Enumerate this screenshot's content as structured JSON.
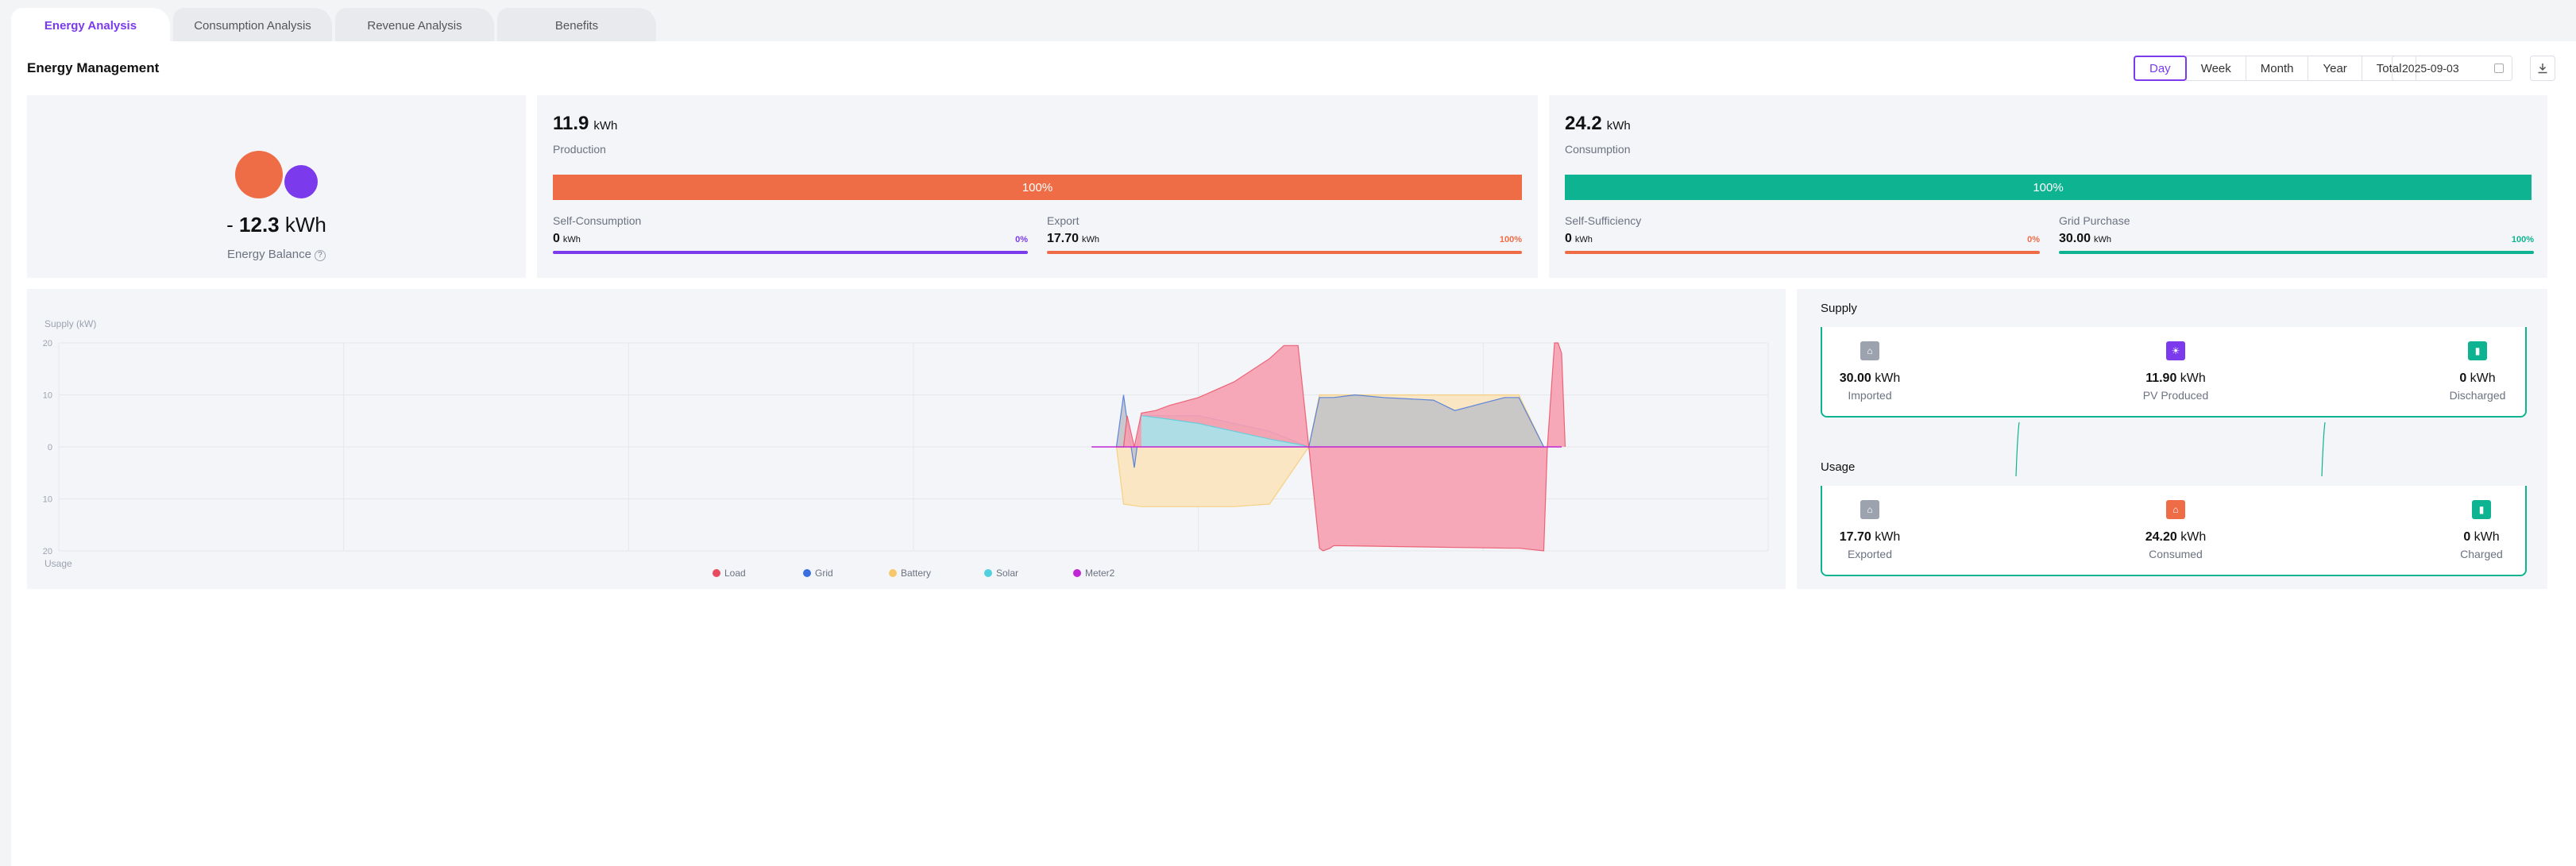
{
  "tabs": [
    {
      "label": "Energy Analysis",
      "active": true
    },
    {
      "label": "Consumption Analysis"
    },
    {
      "label": "Revenue Analysis"
    },
    {
      "label": "Benefits"
    }
  ],
  "header": {
    "title": "Energy Management",
    "periods": [
      "Day",
      "Week",
      "Month",
      "Year",
      "Total"
    ],
    "active_period": "Day",
    "date": "2025-09-03",
    "download_icon": "download-icon"
  },
  "balance": {
    "prefix": "-",
    "value": "12.3",
    "unit": "kWh",
    "label": "Energy Balance",
    "help_icon": "help-circle-icon"
  },
  "production": {
    "value": "11.9",
    "unit": "kWh",
    "label": "Production",
    "bar_percent": "100%",
    "bar_fill": 1.0,
    "color": "#ef6d46",
    "left": {
      "label": "Self-Consumption",
      "value": "0",
      "unit": "kWh",
      "percent": "0%",
      "color": "#7c3aed"
    },
    "right": {
      "label": "Export",
      "value": "17.70",
      "unit": "kWh",
      "percent": "100%",
      "color": "#ef6d46"
    }
  },
  "consumption": {
    "value": "24.2",
    "unit": "kWh",
    "label": "Consumption",
    "bar_percent": "100%",
    "bar_fill": 1.0,
    "color": "#0eb391",
    "left": {
      "label": "Self-Sufficiency",
      "value": "0",
      "unit": "kWh",
      "percent": "0%",
      "color": "#ef6d46"
    },
    "right": {
      "label": "Grid Purchase",
      "value": "30.00",
      "unit": "kWh",
      "percent": "100%",
      "color": "#0eb391"
    }
  },
  "chart_data": {
    "type": "area",
    "ylabel_top": "Supply (kW)",
    "ylabel_bottom": "Usage",
    "ylim": [
      -20,
      20
    ],
    "y_ticks": [
      "20",
      "10",
      "0",
      "10",
      "20"
    ],
    "x_range_hours": [
      0,
      24
    ],
    "grid": true,
    "legend_position": "bottom-center",
    "legend": [
      {
        "name": "Load",
        "color": "#e84a5f"
      },
      {
        "name": "Grid",
        "color": "#3b6fe0"
      },
      {
        "name": "Battery",
        "color": "#f5c96b"
      },
      {
        "name": "Solar",
        "color": "#4fd1e0"
      },
      {
        "name": "Meter2",
        "color": "#c026d3"
      }
    ],
    "series": [
      {
        "name": "Load",
        "x": [
          14.85,
          14.95,
          15.0,
          15.1,
          15.2,
          15.4,
          15.6,
          16,
          16.5,
          17,
          17.2,
          17.4,
          17.55,
          17.7,
          17.75,
          17.85,
          17.9,
          20.4,
          20.5,
          20.85,
          20.9,
          21.0,
          21.05,
          21.1,
          21.15
        ],
        "y": [
          0,
          0,
          6,
          0,
          6.5,
          7,
          8,
          9.5,
          12.5,
          17,
          19.5,
          19.5,
          0,
          -19.5,
          -20,
          -19.5,
          -19,
          -19.5,
          -19.5,
          -20,
          0,
          20,
          20,
          18,
          0
        ]
      },
      {
        "name": "Grid",
        "x": [
          14.85,
          14.95,
          15.0,
          15.1,
          15.2,
          16,
          16.5,
          17,
          17.55,
          17.7,
          17.85,
          17.9,
          18.2,
          18.6,
          19.3,
          19.6,
          20.3,
          20.5,
          20.85
        ],
        "y": [
          0,
          10,
          5,
          -4,
          6,
          6,
          4.5,
          3,
          0,
          9.5,
          9.5,
          9.5,
          10,
          9.5,
          9,
          7,
          9.5,
          9.5,
          0
        ]
      },
      {
        "name": "Battery",
        "x": [
          14.85,
          14.95,
          15.2,
          16,
          16.5,
          17,
          17.55,
          17.7,
          17.85,
          17.9,
          18.2,
          18.6,
          19.3,
          19.6,
          20.3,
          20.5,
          20.85
        ],
        "y": [
          0,
          -11,
          -11.5,
          -11.5,
          -11.5,
          -11,
          0,
          10,
          10,
          10,
          10,
          10,
          10,
          10,
          10,
          10,
          0
        ]
      },
      {
        "name": "Solar",
        "x": [
          15.2,
          15.5,
          16,
          16.5,
          17,
          17.4,
          17.55,
          17.7
        ],
        "y": [
          6,
          5.5,
          4.5,
          3,
          1.5,
          0.5,
          0,
          0
        ]
      },
      {
        "name": "Meter2",
        "x": [
          14.5,
          21.1
        ],
        "y": [
          0,
          0
        ]
      }
    ]
  },
  "flows": {
    "supply": {
      "label": "Supply",
      "items": [
        {
          "value": "30.00",
          "unit": "kWh",
          "label": "Imported",
          "icon": "grid-tower-icon",
          "color": "#9ca3af"
        },
        {
          "value": "11.90",
          "unit": "kWh",
          "label": "PV Produced",
          "icon": "solar-panel-icon",
          "color": "#7c3aed"
        },
        {
          "value": "0",
          "unit": "kWh",
          "label": "Discharged",
          "icon": "battery-icon",
          "color": "#0eb391"
        }
      ]
    },
    "usage": {
      "label": "Usage",
      "items": [
        {
          "value": "17.70",
          "unit": "kWh",
          "label": "Exported",
          "icon": "grid-tower-icon",
          "color": "#9ca3af"
        },
        {
          "value": "24.20",
          "unit": "kWh",
          "label": "Consumed",
          "icon": "home-icon",
          "color": "#ef6d46"
        },
        {
          "value": "0",
          "unit": "kWh",
          "label": "Charged",
          "icon": "battery-icon",
          "color": "#0eb391"
        }
      ]
    }
  }
}
